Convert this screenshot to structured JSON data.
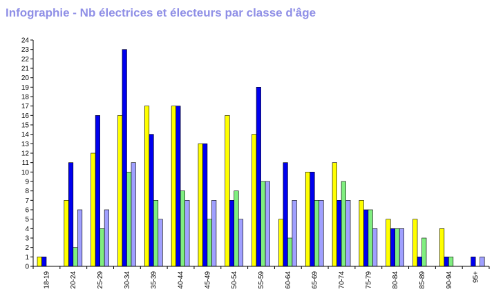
{
  "chart_data": {
    "type": "bar",
    "title": "Infographie - Nb électrices et électeurs par classe d'âge",
    "xlabel": "",
    "ylabel": "",
    "categories": [
      "18-19",
      "20-24",
      "25-29",
      "30-34",
      "35-39",
      "40-44",
      "45-49",
      "50-54",
      "55-59",
      "60-64",
      "65-69",
      "70-74",
      "75-79",
      "80-84",
      "85-89",
      "90-94",
      "95+"
    ],
    "series": [
      {
        "color": "#ffff00",
        "values": [
          1,
          7,
          12,
          16,
          17,
          17,
          13,
          16,
          14,
          5,
          10,
          11,
          7,
          5,
          5,
          4,
          0
        ]
      },
      {
        "color": "#0000ee",
        "values": [
          1,
          11,
          16,
          23,
          14,
          17,
          13,
          7,
          19,
          11,
          10,
          7,
          6,
          4,
          1,
          1,
          1
        ]
      },
      {
        "color": "#80ee80",
        "values": [
          0,
          2,
          4,
          10,
          7,
          8,
          5,
          8,
          9,
          3,
          7,
          9,
          6,
          4,
          3,
          1,
          0
        ]
      },
      {
        "color": "#a0a0ff",
        "values": [
          0,
          6,
          6,
          11,
          5,
          7,
          7,
          5,
          9,
          7,
          7,
          7,
          4,
          4,
          0,
          0,
          1
        ]
      }
    ],
    "yticks": [
      0,
      1,
      2,
      3,
      4,
      5,
      6,
      7,
      8,
      9,
      10,
      11,
      12,
      13,
      14,
      15,
      16,
      17,
      18,
      19,
      20,
      21,
      22,
      23,
      24
    ],
    "ylim": [
      0,
      24
    ],
    "grid": false,
    "legend": "none"
  }
}
